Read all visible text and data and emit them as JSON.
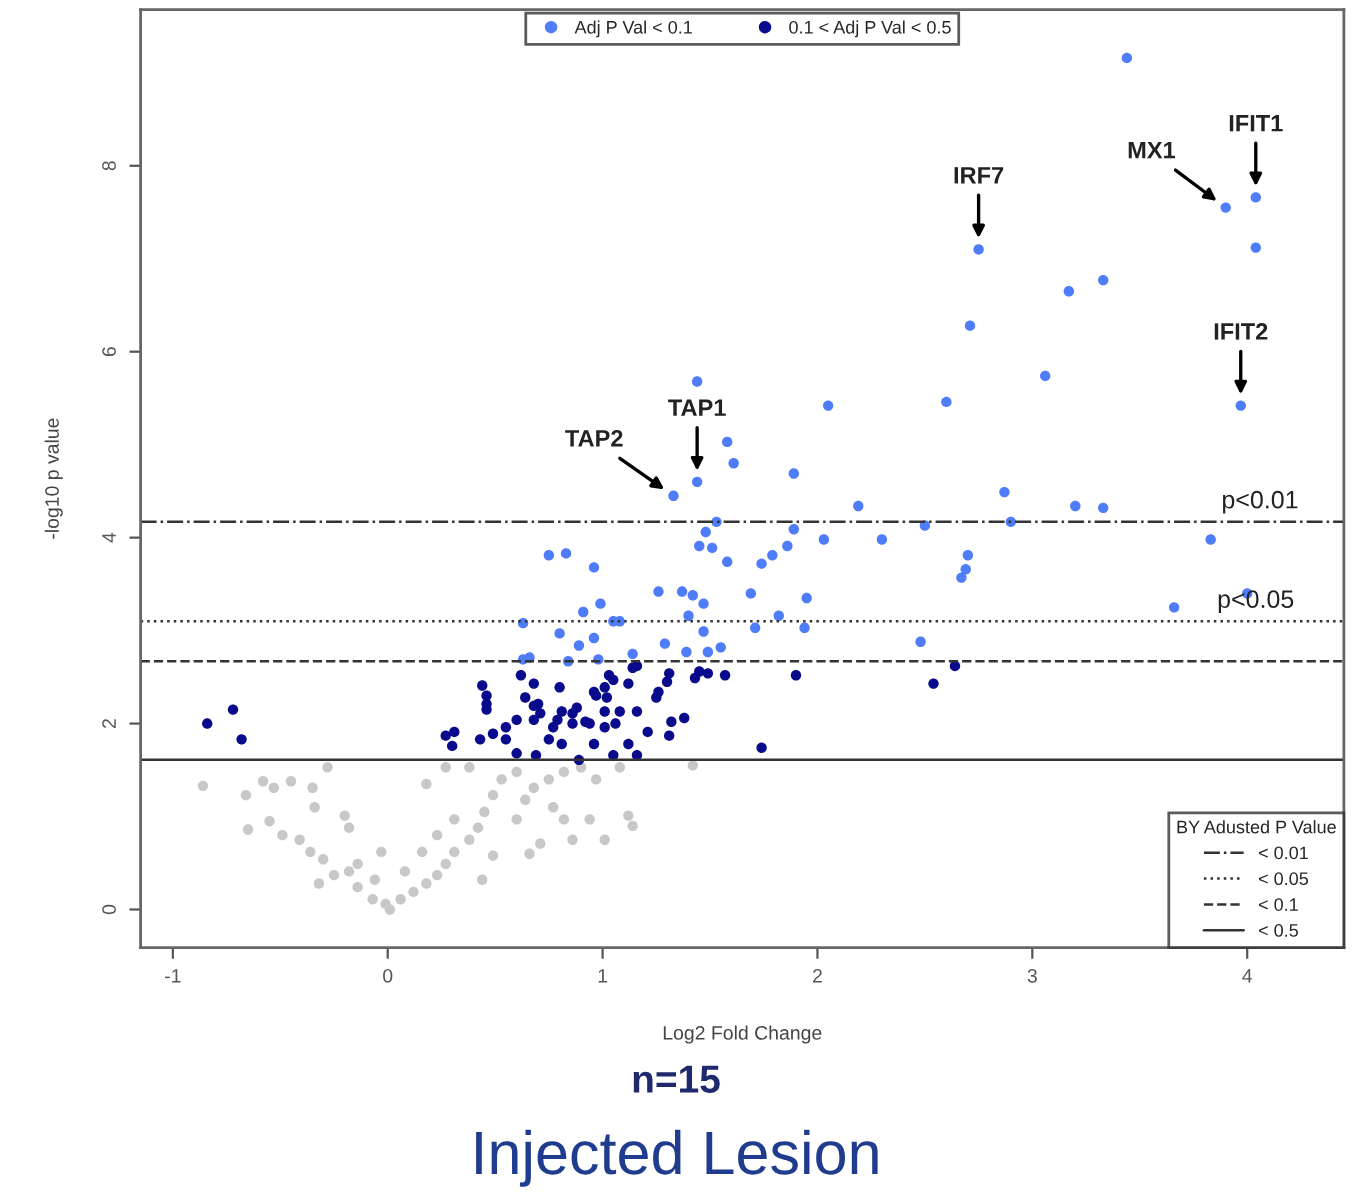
{
  "chart_data": {
    "type": "scatter",
    "title": "Injected Lesion",
    "subtitle": "n=15",
    "xlabel": "Log2 Fold Change",
    "ylabel": "-log10 p value",
    "xlim": [
      -1.15,
      4.45
    ],
    "ylim": [
      -0.41,
      9.68
    ],
    "xticks": [
      -1,
      0,
      1,
      2,
      3,
      4
    ],
    "yticks": [
      0,
      2,
      4,
      6,
      8
    ],
    "grid": false,
    "legend": "top",
    "marker": "circle",
    "legend_title": "BY Adusted P Value",
    "series": [
      {
        "color": "#c8c8c8",
        "x": [
          -0.86,
          -0.66,
          -0.58,
          -0.45,
          -0.53,
          -0.65,
          -0.55,
          -0.49,
          -0.41,
          -0.34,
          -0.28,
          -0.35,
          -0.36,
          -0.3,
          -0.2,
          -0.18,
          -0.25,
          -0.18,
          -0.14,
          -0.07,
          0.01,
          -0.01,
          0.06,
          0.12,
          0.18,
          0.23,
          0.27,
          0.31,
          0.38,
          0.42,
          0.45,
          0.49,
          0.53,
          0.6,
          0.68,
          0.75,
          0.82,
          0.9,
          0.97,
          1.08,
          1.42,
          1.12,
          1.14,
          1.01,
          0.86,
          0.66,
          0.44,
          0.6,
          0.31,
          0.18,
          0.27,
          0.38,
          0.82,
          0.94,
          0.77,
          0.64,
          0.23,
          0.16,
          0.08,
          -0.06,
          -0.14,
          -0.32,
          -0.03,
          0.49,
          0.71
        ],
        "values": [
          1.33,
          1.23,
          1.38,
          1.38,
          1.31,
          0.86,
          0.95,
          0.8,
          0.75,
          1.1,
          1.53,
          1.31,
          0.62,
          0.54,
          1.01,
          0.88,
          0.37,
          0.41,
          0.24,
          0.11,
          0.0,
          0.06,
          0.11,
          0.19,
          0.28,
          0.37,
          0.49,
          0.62,
          0.75,
          0.88,
          1.05,
          1.23,
          1.4,
          1.48,
          1.31,
          1.4,
          1.48,
          1.53,
          1.4,
          1.53,
          1.55,
          1.01,
          0.9,
          0.75,
          0.75,
          0.6,
          0.32,
          0.97,
          0.97,
          1.35,
          1.53,
          1.53,
          0.97,
          0.97,
          1.1,
          1.18,
          0.8,
          0.62,
          0.41,
          0.32,
          0.49,
          0.28,
          0.62,
          0.58,
          0.71
        ]
      },
      {
        "name": "0.1 < Adj P Val < 0.5",
        "color": "#0a0a8c",
        "x": [
          2.64,
          2.54,
          1.9,
          1.43,
          1.49,
          1.57,
          1.3,
          1.25,
          1.14,
          1.12,
          1.05,
          1.01,
          0.97,
          0.8,
          0.68,
          0.62,
          0.44,
          0.46,
          0.46,
          0.68,
          0.71,
          0.81,
          0.86,
          0.92,
          1.01,
          1.08,
          1.16,
          -0.72,
          -0.84,
          -0.68,
          1.74,
          0.46,
          0.64,
          0.7,
          0.88,
          0.96,
          1.02,
          1.31,
          1.26,
          1.32,
          1.38,
          1.31,
          1.21,
          1.12,
          1.05,
          0.96,
          0.89,
          0.81,
          0.75,
          0.77,
          0.68,
          0.6,
          0.55,
          0.49,
          0.55,
          0.6,
          0.69,
          0.43,
          0.31,
          0.27,
          0.3,
          1.06,
          1.01,
          0.94,
          0.86,
          0.79,
          1.16,
          1.03,
          1.16,
          1.45
        ],
        "values": [
          2.62,
          2.43,
          2.52,
          2.49,
          2.54,
          2.52,
          2.45,
          2.28,
          2.6,
          2.43,
          2.47,
          2.39,
          2.3,
          2.39,
          2.43,
          2.52,
          2.41,
          2.3,
          2.15,
          2.19,
          2.11,
          2.13,
          2.11,
          2.02,
          2.13,
          2.13,
          2.13,
          2.15,
          2.0,
          1.83,
          1.74,
          2.21,
          2.28,
          2.21,
          2.17,
          2.34,
          2.28,
          2.54,
          2.34,
          2.02,
          2.06,
          1.87,
          1.91,
          1.78,
          1.66,
          1.78,
          1.61,
          1.78,
          1.83,
          1.96,
          2.04,
          2.04,
          1.96,
          1.89,
          1.83,
          1.68,
          1.66,
          1.83,
          1.91,
          1.87,
          1.76,
          2.0,
          1.96,
          2.0,
          2.0,
          2.04,
          1.66,
          2.52,
          2.62,
          2.56
        ]
      },
      {
        "name": "Adj P Val < 0.1",
        "color": "#4f7dfa",
        "x": [
          3.44,
          4.04,
          3.9,
          2.75,
          4.04,
          3.17,
          3.33,
          2.71,
          3.06,
          1.44,
          2.6,
          2.05,
          3.97,
          1.58,
          1.61,
          1.89,
          1.44,
          1.33,
          2.19,
          2.87,
          2.9,
          3.2,
          3.33,
          1.89,
          1.53,
          1.48,
          2.03,
          2.3,
          2.5,
          3.83,
          0.75,
          0.83,
          0.96,
          1.45,
          1.51,
          1.58,
          1.74,
          1.79,
          1.86,
          2.7,
          2.69,
          2.67,
          1.26,
          1.37,
          1.42,
          1.47,
          1.4,
          1.69,
          1.95,
          1.82,
          1.94,
          1.71,
          0.99,
          0.91,
          1.05,
          1.08,
          0.63,
          0.8,
          0.96,
          0.89,
          1.29,
          1.47,
          1.49,
          1.55,
          1.39,
          1.14,
          0.98,
          0.84,
          0.66,
          0.63,
          2.48,
          3.66,
          4.0
        ],
        "values": [
          9.16,
          7.66,
          7.55,
          7.1,
          7.12,
          6.65,
          6.77,
          6.28,
          5.74,
          5.68,
          5.46,
          5.42,
          5.42,
          5.03,
          4.8,
          4.69,
          4.6,
          4.45,
          4.34,
          4.49,
          4.17,
          4.34,
          4.32,
          4.09,
          4.17,
          4.06,
          3.98,
          3.98,
          4.13,
          3.98,
          3.81,
          3.83,
          3.68,
          3.91,
          3.89,
          3.74,
          3.72,
          3.81,
          3.91,
          3.81,
          3.66,
          3.57,
          3.42,
          3.42,
          3.38,
          3.29,
          3.16,
          3.4,
          3.35,
          3.16,
          3.03,
          3.03,
          3.29,
          3.2,
          3.1,
          3.1,
          3.08,
          2.97,
          2.92,
          2.84,
          2.86,
          2.99,
          2.77,
          2.82,
          2.77,
          2.75,
          2.69,
          2.67,
          2.71,
          2.69,
          2.88,
          3.25,
          3.4
        ]
      }
    ],
    "ref_lines": [
      {
        "axis": "y",
        "value": 4.17,
        "line_style": "dashdot"
      },
      {
        "axis": "y",
        "value": 3.1,
        "line_style": "dotted"
      },
      {
        "axis": "y",
        "value": 2.67,
        "line_style": "dashed"
      },
      {
        "axis": "y",
        "value": 1.61,
        "line_style": "solid"
      }
    ],
    "annotations": [
      "< 0.01",
      "< 0.05",
      "< 0.1",
      "< 0.5",
      {
        "text": "IFIT1",
        "x": 4.04,
        "y": 7.66
      },
      {
        "text": "MX1",
        "x": 3.9,
        "y": 7.55
      },
      {
        "text": "IRF7",
        "x": 2.75,
        "y": 7.1
      },
      {
        "text": "IFIT2",
        "x": 3.97,
        "y": 5.42
      },
      {
        "text": "TAP1",
        "x": 1.44,
        "y": 4.6
      },
      {
        "text": "TAP2",
        "x": 1.33,
        "y": 4.45
      },
      {
        "text": "p<0.01",
        "x": 3.88,
        "y": 4.17
      },
      {
        "text": "p<0.05",
        "x": 3.86,
        "y": 3.1
      }
    ]
  }
}
